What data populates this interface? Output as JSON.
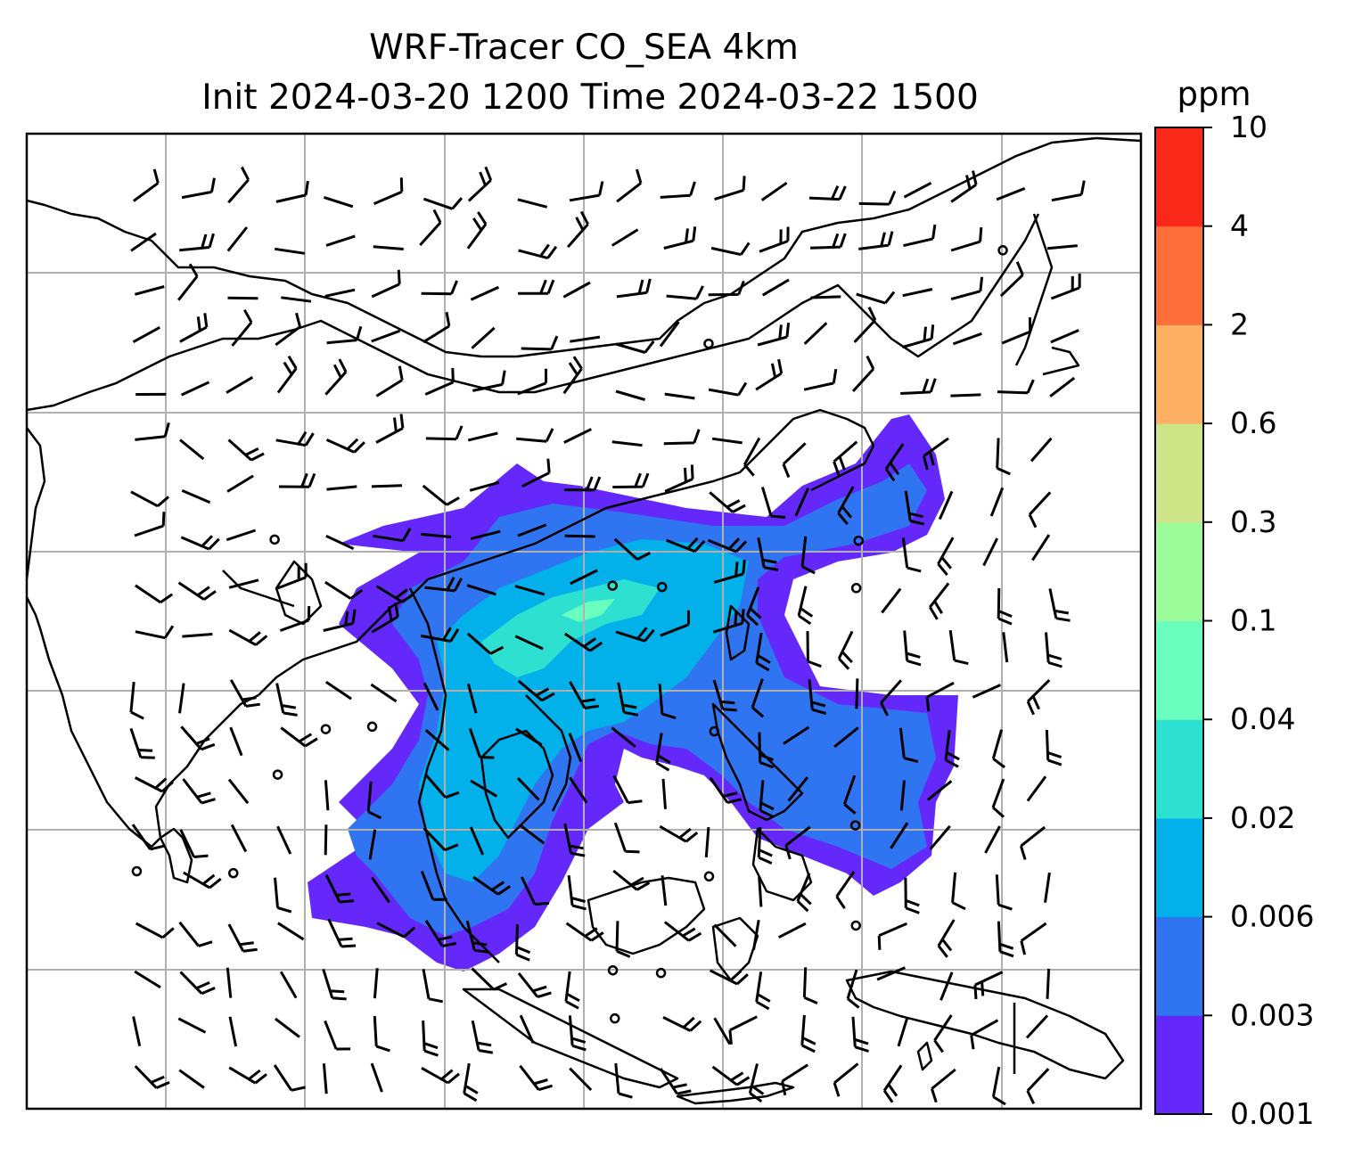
{
  "title": {
    "line1": "WRF-Tracer CO_SEA 4km",
    "line2": "Init 2024-03-20 1200 Time 2024-03-22 1500"
  },
  "colorbar": {
    "unit": "ppm",
    "levels": [
      "0.001",
      "0.003",
      "0.006",
      "0.02",
      "0.04",
      "0.1",
      "0.3",
      "0.6",
      "2",
      "4",
      "10"
    ],
    "colors": [
      "#6428fa",
      "#2f74f0",
      "#02b0ea",
      "#2ee0d0",
      "#6affbe",
      "#9cfc9a",
      "#cfe387",
      "#fdb064",
      "#fe6e3a",
      "#fa2818"
    ]
  },
  "map": {
    "field": "CO tracer concentration",
    "overlay": "wind barbs",
    "gridlines": true,
    "coastlines": true
  }
}
